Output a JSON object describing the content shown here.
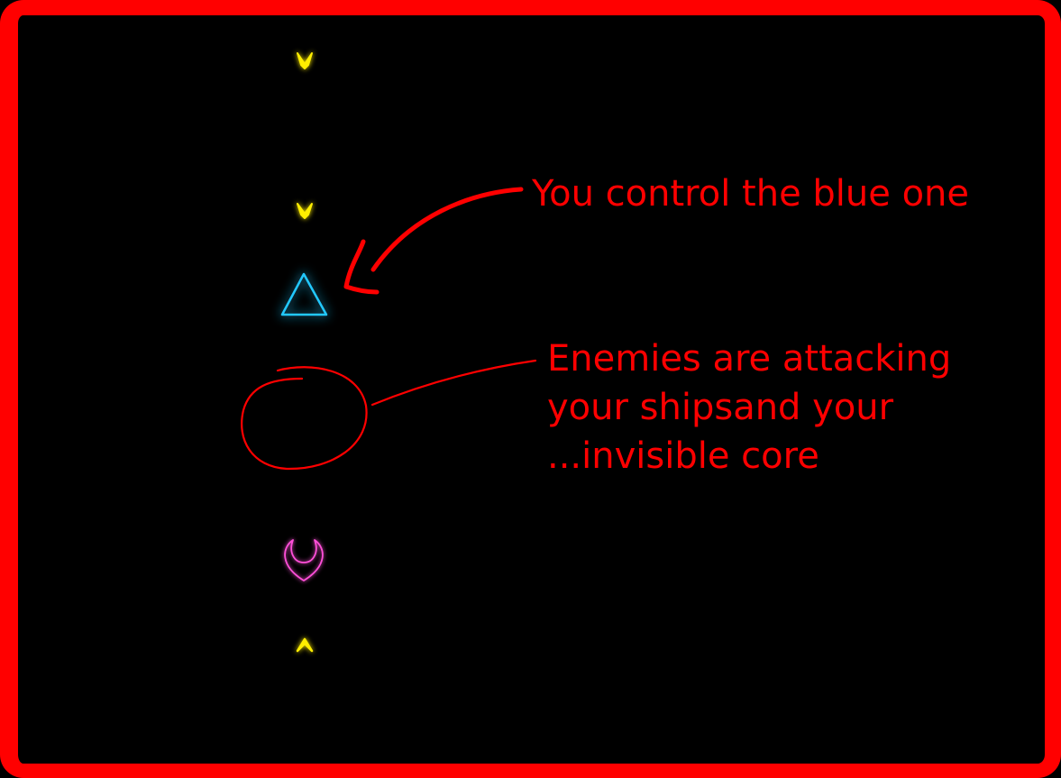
{
  "annotations": {
    "player_hint": "You control the blue one",
    "enemy_hint_lines": [
      "Enemies are attacking",
      "your shipsand your",
      "...invisible core"
    ]
  },
  "colors": {
    "frame": "#ff0000",
    "annotation": "#ff0000",
    "background": "#000000",
    "player_ship": "#22c8ff",
    "enemy": "#ffee00",
    "laser": "#ffee00",
    "ally_ship": "#ff4fd8"
  },
  "icons": {
    "player": "player-ship-triangle",
    "enemy": "enemy-chevron",
    "ally": "ally-heart-ship"
  }
}
